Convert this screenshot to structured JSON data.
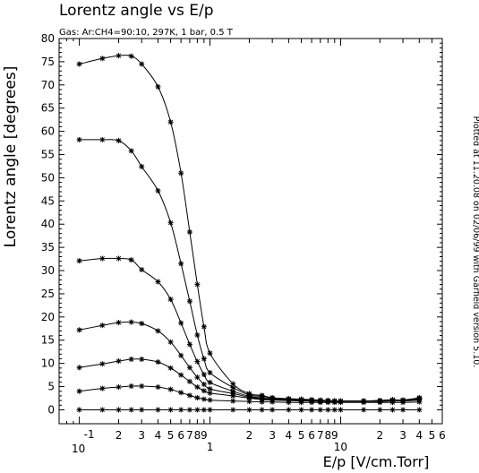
{
  "chart_data": {
    "type": "line",
    "title": "Lorentz angle vs E/p",
    "subtitle": "Gas: Ar:CH4=90:10, 297K, 1 bar, 0.5 T",
    "xlabel": "E/p [V/cm.Torr]",
    "ylabel": "Lorentz angle [degrees]",
    "side_note": "Plotted at 11.20.08 on 02/06/99 with Garfield version 5.10.",
    "x_scale": "log",
    "xlim": [
      0.07,
      60
    ],
    "ylim": [
      -3,
      80
    ],
    "grid": false,
    "legend": "none",
    "y_ticks": [
      0,
      5,
      10,
      15,
      20,
      25,
      30,
      35,
      40,
      45,
      50,
      55,
      60,
      65,
      70,
      75,
      80
    ],
    "x_tick_labels": [
      {
        "x": 0.1,
        "text": "10",
        "exp": "-1"
      },
      {
        "x": 0.2,
        "text": "2"
      },
      {
        "x": 0.3,
        "text": "3"
      },
      {
        "x": 0.4,
        "text": "4"
      },
      {
        "x": 0.5,
        "text": "5"
      },
      {
        "x": 0.6,
        "text": "6"
      },
      {
        "x": 0.7,
        "text": "7"
      },
      {
        "x": 0.8,
        "text": "8"
      },
      {
        "x": 0.9,
        "text": "9"
      },
      {
        "x": 1,
        "text": "1"
      },
      {
        "x": 2,
        "text": "2"
      },
      {
        "x": 3,
        "text": "3"
      },
      {
        "x": 4,
        "text": "4"
      },
      {
        "x": 5,
        "text": "5"
      },
      {
        "x": 6,
        "text": "6"
      },
      {
        "x": 7,
        "text": "7"
      },
      {
        "x": 8,
        "text": "8"
      },
      {
        "x": 9,
        "text": "9"
      },
      {
        "x": 10,
        "text": "10"
      },
      {
        "x": 20,
        "text": "2"
      },
      {
        "x": 30,
        "text": "3"
      },
      {
        "x": 40,
        "text": "4"
      },
      {
        "x": 50,
        "text": "5"
      },
      {
        "x": 60,
        "text": "6"
      }
    ],
    "x": [
      0.1,
      0.15,
      0.2,
      0.25,
      0.3,
      0.4,
      0.5,
      0.6,
      0.7,
      0.8,
      0.9,
      1,
      1.5,
      2,
      2.5,
      3,
      4,
      5,
      6,
      7,
      8,
      9,
      10,
      15,
      20,
      25,
      30,
      40
    ],
    "series": [
      {
        "values": [
          74.5,
          75.7,
          76.3,
          76.2,
          74.5,
          69.6,
          62.0,
          51.0,
          38.3,
          27.0,
          17.9,
          12.2,
          5.6,
          3.5,
          3.1,
          2.6,
          2.4,
          2.3,
          2.2,
          2.1,
          2.0,
          1.9,
          1.9,
          1.9,
          2.0,
          2.2,
          2.1,
          2.6
        ]
      },
      {
        "values": [
          58.2,
          58.2,
          58.0,
          55.8,
          52.4,
          47.2,
          40.3,
          31.5,
          23.4,
          16.1,
          11.0,
          8.0,
          4.8,
          3.2,
          2.9,
          2.6,
          2.3,
          2.2,
          2.1,
          2.0,
          2.0,
          1.9,
          1.9,
          1.9,
          2.0,
          2.1,
          2.1,
          2.5
        ]
      },
      {
        "values": [
          32.1,
          32.6,
          32.6,
          32.3,
          30.2,
          27.6,
          23.8,
          18.7,
          14.1,
          10.4,
          7.6,
          5.9,
          4.0,
          2.9,
          2.6,
          2.4,
          2.2,
          2.1,
          2.0,
          1.9,
          1.9,
          1.9,
          1.9,
          1.9,
          1.9,
          2.0,
          2.1,
          2.4
        ]
      },
      {
        "values": [
          17.2,
          18.2,
          18.8,
          18.9,
          18.6,
          17.0,
          14.6,
          11.7,
          9.1,
          7.0,
          5.5,
          4.5,
          3.5,
          2.7,
          2.4,
          2.3,
          2.1,
          2.0,
          1.9,
          1.9,
          1.9,
          1.9,
          1.9,
          1.9,
          1.9,
          2.0,
          2.0,
          2.3
        ]
      },
      {
        "values": [
          9.1,
          9.9,
          10.5,
          10.9,
          10.9,
          10.3,
          9.0,
          7.5,
          6.1,
          4.9,
          4.1,
          3.6,
          3.0,
          2.5,
          2.2,
          2.1,
          2.0,
          1.9,
          1.9,
          1.8,
          1.8,
          1.8,
          1.8,
          1.8,
          1.8,
          1.9,
          1.9,
          2.1
        ]
      },
      {
        "values": [
          4.0,
          4.6,
          4.9,
          5.1,
          5.1,
          4.9,
          4.4,
          3.7,
          3.1,
          2.6,
          2.3,
          2.1,
          1.9,
          1.8,
          1.7,
          1.7,
          1.6,
          1.6,
          1.6,
          1.6,
          1.6,
          1.6,
          1.6,
          1.6,
          1.6,
          1.6,
          1.6,
          1.7
        ]
      },
      {
        "values": [
          0.0,
          0.0,
          0.0,
          0.0,
          0.0,
          0.0,
          0.0,
          0.0,
          0.0,
          0.0,
          0.0,
          0.0,
          0.0,
          0.0,
          0.0,
          0.0,
          0.0,
          0.0,
          0.0,
          0.0,
          0.0,
          0.0,
          0.0,
          0.0,
          0.0,
          0.0,
          0.0,
          0.0
        ]
      }
    ]
  }
}
